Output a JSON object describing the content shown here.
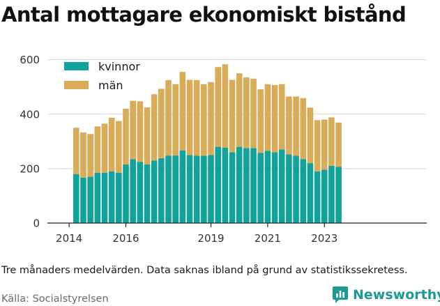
{
  "title": "Antal mottagare ekonomiskt bistånd",
  "note": "Tre månaders medelvärden. Data saknas ibland på grund av statistikssekretess.",
  "source": "Källa: Socialstyrelsen",
  "brand": {
    "name": "Newsworthy",
    "icon": "newsworthy-logo-icon",
    "color": "#1a9a92"
  },
  "chart_data": {
    "type": "bar",
    "stacked": true,
    "title": "Antal mottagare ekonomiskt bistånd",
    "xlabel": "",
    "ylabel": "",
    "ylim": [
      0,
      640
    ],
    "yticks": [
      0,
      200,
      400,
      600
    ],
    "xtick_labels": [
      "2014",
      "2016",
      "2019",
      "2021",
      "2023"
    ],
    "grid": true,
    "legend_position": "top-left",
    "categories": [
      "2014 Q2",
      "2014 Q3",
      "2014 Q4",
      "2015 Q1",
      "2015 Q2",
      "2015 Q3",
      "2015 Q4",
      "2016 Q1",
      "2016 Q2",
      "2016 Q3",
      "2016 Q4",
      "2017 Q1",
      "2017 Q2",
      "2017 Q3",
      "2017 Q4",
      "2018 Q1",
      "2018 Q2",
      "2018 Q3",
      "2018 Q4",
      "2019 Q1",
      "2019 Q2",
      "2019 Q3",
      "2019 Q4",
      "2020 Q1",
      "2020 Q2",
      "2020 Q3",
      "2020 Q4",
      "2021 Q1",
      "2021 Q2",
      "2021 Q3",
      "2021 Q4",
      "2022 Q1",
      "2022 Q2",
      "2022 Q3",
      "2022 Q4",
      "2023 Q1",
      "2023 Q2",
      "2023 Q3",
      "2023 Q4"
    ],
    "series": [
      {
        "name": "kvinnor",
        "color": "#0fa39b",
        "values": [
          180,
          167,
          170,
          185,
          185,
          190,
          185,
          215,
          235,
          225,
          215,
          230,
          238,
          248,
          248,
          267,
          250,
          247,
          247,
          250,
          280,
          277,
          260,
          280,
          275,
          275,
          258,
          265,
          260,
          270,
          252,
          247,
          235,
          220,
          190,
          196,
          210,
          207,
          0
        ]
      },
      {
        "name": "män",
        "color": "#dbac57",
        "values": [
          170,
          166,
          157,
          170,
          180,
          197,
          190,
          205,
          214,
          222,
          210,
          243,
          255,
          277,
          262,
          288,
          276,
          278,
          263,
          268,
          293,
          306,
          266,
          270,
          260,
          255,
          233,
          245,
          247,
          240,
          213,
          218,
          224,
          204,
          188,
          184,
          178,
          162,
          0
        ]
      }
    ]
  }
}
